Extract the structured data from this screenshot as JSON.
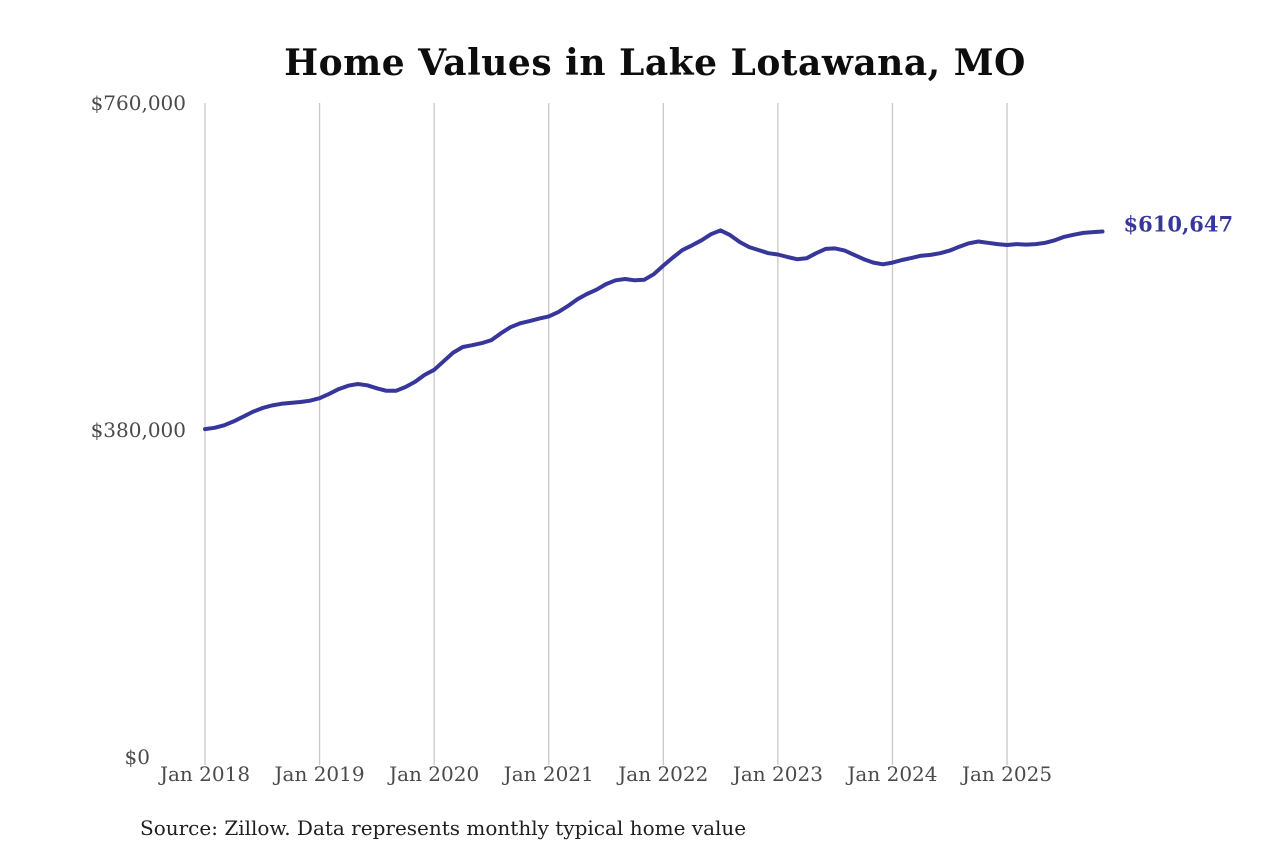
{
  "title": "Home Values in Lake Lotawana, MO",
  "source_note": "Source: Zillow. Data represents monthly typical home value",
  "end_label": "$610,647",
  "colors": {
    "line": "#37379b",
    "grid": "#c9c9c9",
    "axis_text": "#4a4a4a",
    "title_text": "#0d0d0d",
    "source_text": "#1f1f1f"
  },
  "y_axis": {
    "ticks": [
      {
        "label": "$760,000",
        "value": 760000
      },
      {
        "label": "$380,000",
        "value": 380000
      },
      {
        "label": "$0",
        "value": 0
      }
    ]
  },
  "x_axis": {
    "tick_labels": [
      "Jan 2018",
      "Jan 2019",
      "Jan 2020",
      "Jan 2021",
      "Jan 2022",
      "Jan 2023",
      "Jan 2024",
      "Jan 2025"
    ],
    "tick_month_indices": [
      0,
      12,
      24,
      36,
      48,
      60,
      72,
      84
    ]
  },
  "chart_data": {
    "type": "line",
    "title": "Home Values in Lake Lotawana, MO",
    "x_start_month": "2018-01",
    "x_end_month": "2025-11",
    "x_cadence": "monthly",
    "unit": "USD",
    "ylim": [
      0,
      760000
    ],
    "grid": "vertical-only",
    "legend": "none",
    "final_value": 610647,
    "final_value_label": "$610,647",
    "series": [
      {
        "name": "Typical home value",
        "values": [
          381000,
          382500,
          385500,
          390000,
          395500,
          401000,
          405500,
          408500,
          410500,
          411500,
          412500,
          414000,
          417000,
          422000,
          427500,
          431500,
          433500,
          432000,
          428500,
          425500,
          425500,
          430000,
          436000,
          444000,
          450000,
          460000,
          470000,
          476500,
          478500,
          481000,
          484500,
          492500,
          499500,
          504000,
          506500,
          509500,
          512000,
          517000,
          524000,
          532000,
          538000,
          543000,
          549500,
          554000,
          555500,
          554000,
          554500,
          561000,
          571000,
          580500,
          589000,
          594500,
          600500,
          607500,
          612000,
          606500,
          598500,
          592500,
          589000,
          585500,
          584000,
          581000,
          578500,
          579500,
          585500,
          590500,
          591000,
          588500,
          583500,
          578500,
          574500,
          572500,
          574500,
          577500,
          580000,
          582500,
          583500,
          585500,
          588500,
          593000,
          597000,
          599000,
          597500,
          596000,
          595000,
          596000,
          595500,
          596000,
          597500,
          600500,
          604500,
          607000,
          609000,
          610000,
          610647
        ]
      }
    ]
  }
}
